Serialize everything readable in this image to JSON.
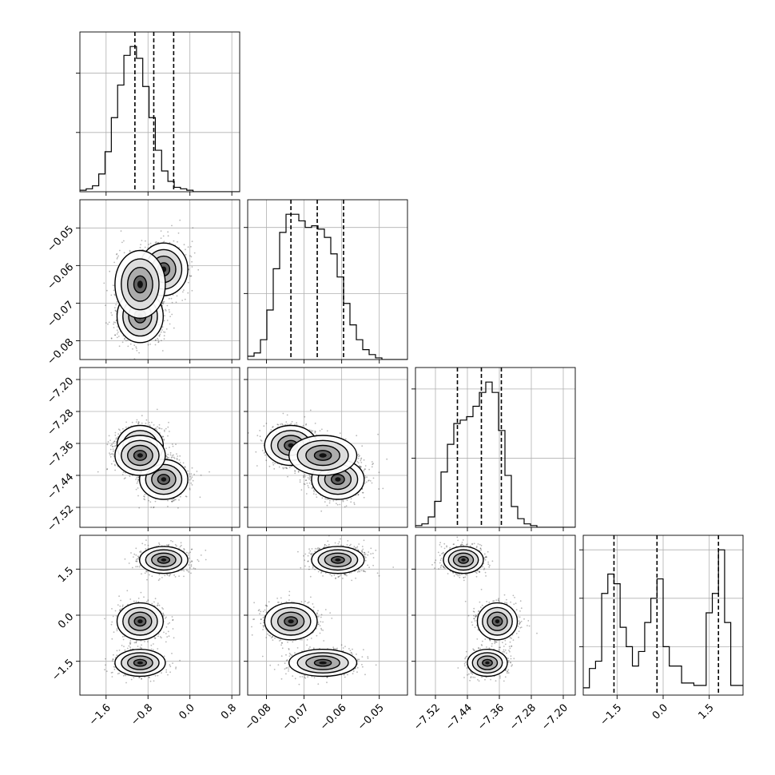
{
  "chart_data": {
    "type": "corner",
    "grid": true,
    "parameters": [
      {
        "range": [
          -2.1,
          0.95
        ],
        "ticks": [
          -1.6,
          -0.8,
          0.0,
          0.8
        ],
        "tick_labels": [
          "−1.6",
          "−0.8",
          "0.0",
          "0.8"
        ],
        "quantiles": [
          -1.05,
          -0.69,
          -0.31
        ],
        "histogram": {
          "start": -2.1,
          "width": 0.12,
          "counts": [
            1,
            2,
            4,
            12,
            27,
            50,
            72,
            92,
            98,
            90,
            71,
            50,
            28,
            14,
            7,
            3,
            2,
            1,
            0,
            0,
            0,
            0,
            0,
            0,
            0,
            0
          ]
        }
      },
      {
        "range": [
          -0.085,
          -0.0425
        ],
        "ticks": [
          -0.08,
          -0.07,
          -0.06,
          -0.05
        ],
        "tick_labels": [
          "−0.08",
          "−0.07",
          "−0.06",
          "−0.05"
        ],
        "quantiles": [
          -0.0735,
          -0.0665,
          -0.0595
        ],
        "histogram": {
          "start": -0.085,
          "width": 0.0017,
          "counts": [
            2,
            4,
            12,
            30,
            55,
            77,
            88,
            88,
            84,
            80,
            81,
            79,
            74,
            64,
            50,
            34,
            21,
            12,
            6,
            3,
            1,
            0,
            0,
            0,
            0
          ]
        }
      },
      {
        "range": [
          -7.57,
          -7.17
        ],
        "ticks": [
          -7.52,
          -7.44,
          -7.36,
          -7.28,
          -7.2
        ],
        "tick_labels": [
          "−7.52",
          "−7.44",
          "−7.36",
          "−7.28",
          "−7.20"
        ],
        "quantiles": [
          -7.465,
          -7.405,
          -7.355
        ],
        "histogram": {
          "start": -7.57,
          "width": 0.016,
          "counts": [
            1,
            2,
            6,
            15,
            32,
            48,
            60,
            62,
            64,
            70,
            78,
            84,
            78,
            56,
            30,
            12,
            5,
            2,
            1,
            0,
            0,
            0,
            0,
            0,
            0
          ]
        }
      },
      {
        "range": [
          -2.6,
          2.6
        ],
        "ticks": [
          -1.5,
          0.0,
          1.5
        ],
        "tick_labels": [
          "−1.5",
          "0.0",
          "1.5"
        ],
        "quantiles": [
          -1.6,
          -0.2,
          1.8
        ],
        "histogram": {
          "start": -2.6,
          "width": 0.2,
          "counts": [
            3,
            11,
            14,
            42,
            50,
            46,
            28,
            20,
            12,
            18,
            30,
            40,
            48,
            20,
            12,
            12,
            5,
            5,
            4,
            4,
            34,
            42,
            60,
            30,
            4,
            4
          ]
        }
      }
    ],
    "modes": [
      {
        "weight": 0.38,
        "mean": [
          -0.5,
          -0.061,
          -7.45,
          1.8
        ],
        "sd": [
          0.23,
          0.0035,
          0.025,
          0.22
        ]
      },
      {
        "weight": 0.34,
        "mean": [
          -0.95,
          -0.0735,
          -7.365,
          -0.2
        ],
        "sd": [
          0.22,
          0.0035,
          0.025,
          0.3
        ]
      },
      {
        "weight": 0.28,
        "mean": [
          -0.95,
          -0.065,
          -7.39,
          -1.55
        ],
        "sd": [
          0.24,
          0.0045,
          0.025,
          0.22
        ]
      }
    ]
  }
}
